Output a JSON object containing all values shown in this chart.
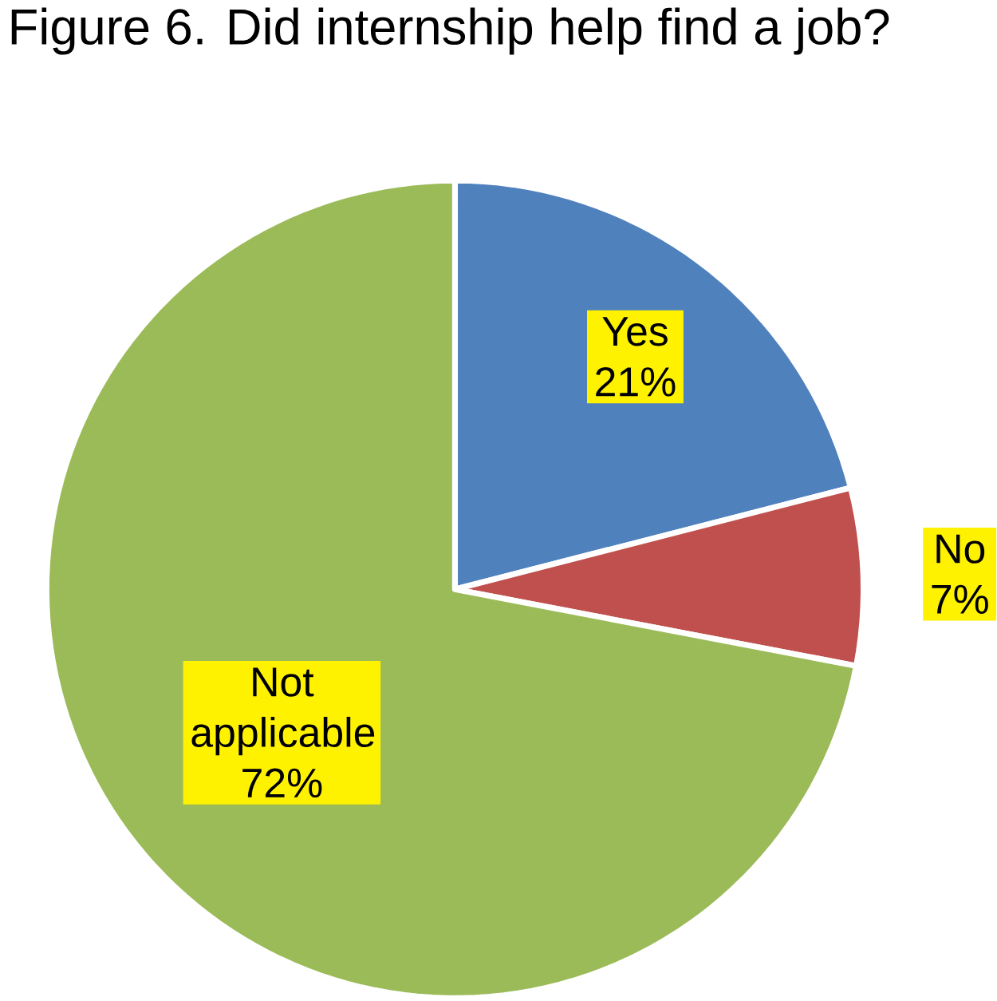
{
  "chart_data": {
    "type": "pie",
    "title": "Figure 6. Did internship help find a job?",
    "categories": [
      "Yes",
      "No",
      "Not applicable"
    ],
    "values": [
      21,
      7,
      72
    ],
    "value_labels": [
      "21%",
      "7%",
      "72%"
    ],
    "colors": [
      "#4f81bd",
      "#c0504d",
      "#9bbb59"
    ]
  }
}
